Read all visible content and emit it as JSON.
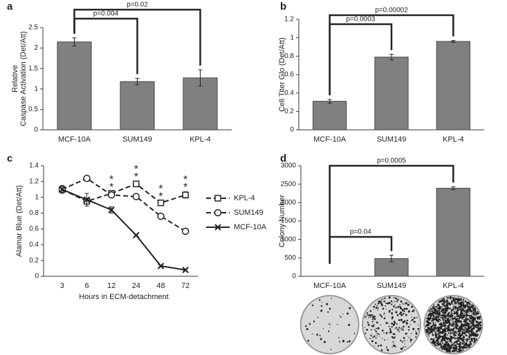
{
  "chart_data": [
    {
      "type": "bar",
      "label": "a",
      "categories": [
        "MCF-10A",
        "SUM149",
        "KPL-4"
      ],
      "values": [
        2.15,
        1.18,
        1.27
      ],
      "errors": [
        0.1,
        0.08,
        0.2
      ],
      "color": "#808080",
      "ylabel": [
        "Relative",
        "Caspase Activation (Det/Att)"
      ],
      "ylim": [
        0,
        2.5
      ],
      "yticks": [
        0,
        0.5,
        1,
        1.5,
        2,
        2.5
      ],
      "comparisons": [
        {
          "from": "MCF-10A",
          "to": "SUM149",
          "label": "p=0.004"
        },
        {
          "from": "MCF-10A",
          "to": "KPL-4",
          "label": "p=0.02"
        }
      ]
    },
    {
      "type": "bar",
      "label": "b",
      "categories": [
        "MCF-10A",
        "SUM149",
        "KPL-4"
      ],
      "values": [
        0.31,
        0.79,
        0.96
      ],
      "errors": [
        0.02,
        0.03,
        0.01
      ],
      "color": "#808080",
      "ylabel": [
        "Cell Titer Glo (Det/Att)"
      ],
      "ylim": [
        0,
        1.2
      ],
      "yticks": [
        0,
        0.2,
        0.4,
        0.6,
        0.8,
        1,
        1.2
      ],
      "comparisons": [
        {
          "from": "MCF-10A",
          "to": "SUM149",
          "label": "p=0.0003"
        },
        {
          "from": "MCF-10A",
          "to": "KPL-4",
          "label": "p=0.00002"
        }
      ]
    },
    {
      "type": "line",
      "label": "c",
      "categories": [
        "3",
        "6",
        "12",
        "24",
        "48",
        "72"
      ],
      "xlabel": "Hours in ECM-detachment",
      "ylabel": [
        "Alamar Blue (Det/Att)"
      ],
      "ylim": [
        0,
        1.4
      ],
      "yticks": [
        0,
        0.2,
        0.4,
        0.6,
        0.8,
        1,
        1.2,
        1.4
      ],
      "series": [
        {
          "name": "KPL-4",
          "color": "#222222",
          "marker": "square",
          "line_style": "dashed",
          "values": [
            1.1,
            0.95,
            1.05,
            1.17,
            0.93,
            1.03
          ],
          "errors": [
            0.03,
            0.03,
            0.02,
            0.03,
            0.02,
            0.04
          ],
          "annotations": [
            null,
            null,
            "*",
            "*",
            "*",
            "*"
          ]
        },
        {
          "name": "SUM149",
          "color": "#222222",
          "marker": "circle",
          "line_style": "dashed",
          "values": [
            1.1,
            1.24,
            1.03,
            1.01,
            0.76,
            0.57
          ],
          "errors": [
            0.03,
            0.01,
            0.02,
            0.02,
            0.03,
            0.02
          ],
          "annotations": [
            null,
            null,
            "*",
            "*",
            "*",
            "*"
          ]
        },
        {
          "name": "MCF-10A",
          "color": "#222222",
          "marker": "x",
          "line_style": "solid",
          "values": [
            1.1,
            0.97,
            0.84,
            0.52,
            0.13,
            0.08
          ],
          "errors": [
            0.05,
            0.08,
            0.04,
            0.01,
            0.01,
            0.01
          ],
          "annotations": [
            null,
            null,
            null,
            null,
            null,
            null
          ]
        }
      ]
    },
    {
      "type": "bar",
      "label": "d",
      "categories": [
        "MCF-10A",
        "SUM149",
        "KPL-4"
      ],
      "values": [
        0,
        480,
        2390
      ],
      "errors": [
        0,
        90,
        40
      ],
      "color": "#808080",
      "ylabel": [
        "Colony Number"
      ],
      "ylim": [
        0,
        3000
      ],
      "yticks": [
        0,
        500,
        1000,
        1500,
        2000,
        2500,
        3000
      ],
      "comparisons": [
        {
          "from": "MCF-10A",
          "to": "SUM149",
          "label": "p=0.04"
        },
        {
          "from": "MCF-10A",
          "to": "KPL-4",
          "label": "p=0.0005"
        }
      ]
    }
  ]
}
